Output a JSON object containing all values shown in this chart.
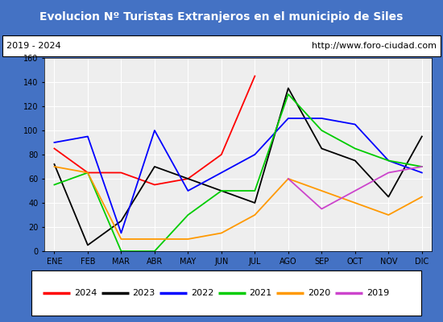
{
  "title": "Evolucion Nº Turistas Extranjeros en el municipio de Siles",
  "subtitle_left": "2019 - 2024",
  "subtitle_right": "http://www.foro-ciudad.com",
  "title_bg_color": "#4472c4",
  "title_text_color": "#ffffff",
  "months": [
    "ENE",
    "FEB",
    "MAR",
    "ABR",
    "MAY",
    "JUN",
    "JUL",
    "AGO",
    "SEP",
    "OCT",
    "NOV",
    "DIC"
  ],
  "ylim": [
    0,
    160
  ],
  "yticks": [
    0,
    20,
    40,
    60,
    80,
    100,
    120,
    140,
    160
  ],
  "series": [
    {
      "year": "2024",
      "color": "#ff0000",
      "data": [
        85,
        65,
        65,
        55,
        60,
        80,
        145,
        null,
        null,
        null,
        null,
        null
      ]
    },
    {
      "year": "2023",
      "color": "#000000",
      "data": [
        72,
        5,
        25,
        70,
        60,
        50,
        40,
        135,
        85,
        75,
        45,
        95
      ]
    },
    {
      "year": "2022",
      "color": "#0000ff",
      "data": [
        90,
        95,
        15,
        100,
        50,
        65,
        80,
        110,
        110,
        105,
        75,
        65
      ]
    },
    {
      "year": "2021",
      "color": "#00cc00",
      "data": [
        55,
        65,
        0,
        0,
        30,
        50,
        50,
        130,
        100,
        85,
        75,
        70
      ]
    },
    {
      "year": "2020",
      "color": "#ff9900",
      "data": [
        70,
        65,
        10,
        10,
        10,
        15,
        30,
        60,
        50,
        40,
        30,
        45
      ]
    },
    {
      "year": "2019",
      "color": "#cc44cc",
      "data": [
        null,
        null,
        null,
        null,
        null,
        null,
        null,
        60,
        35,
        50,
        65,
        70
      ]
    }
  ]
}
